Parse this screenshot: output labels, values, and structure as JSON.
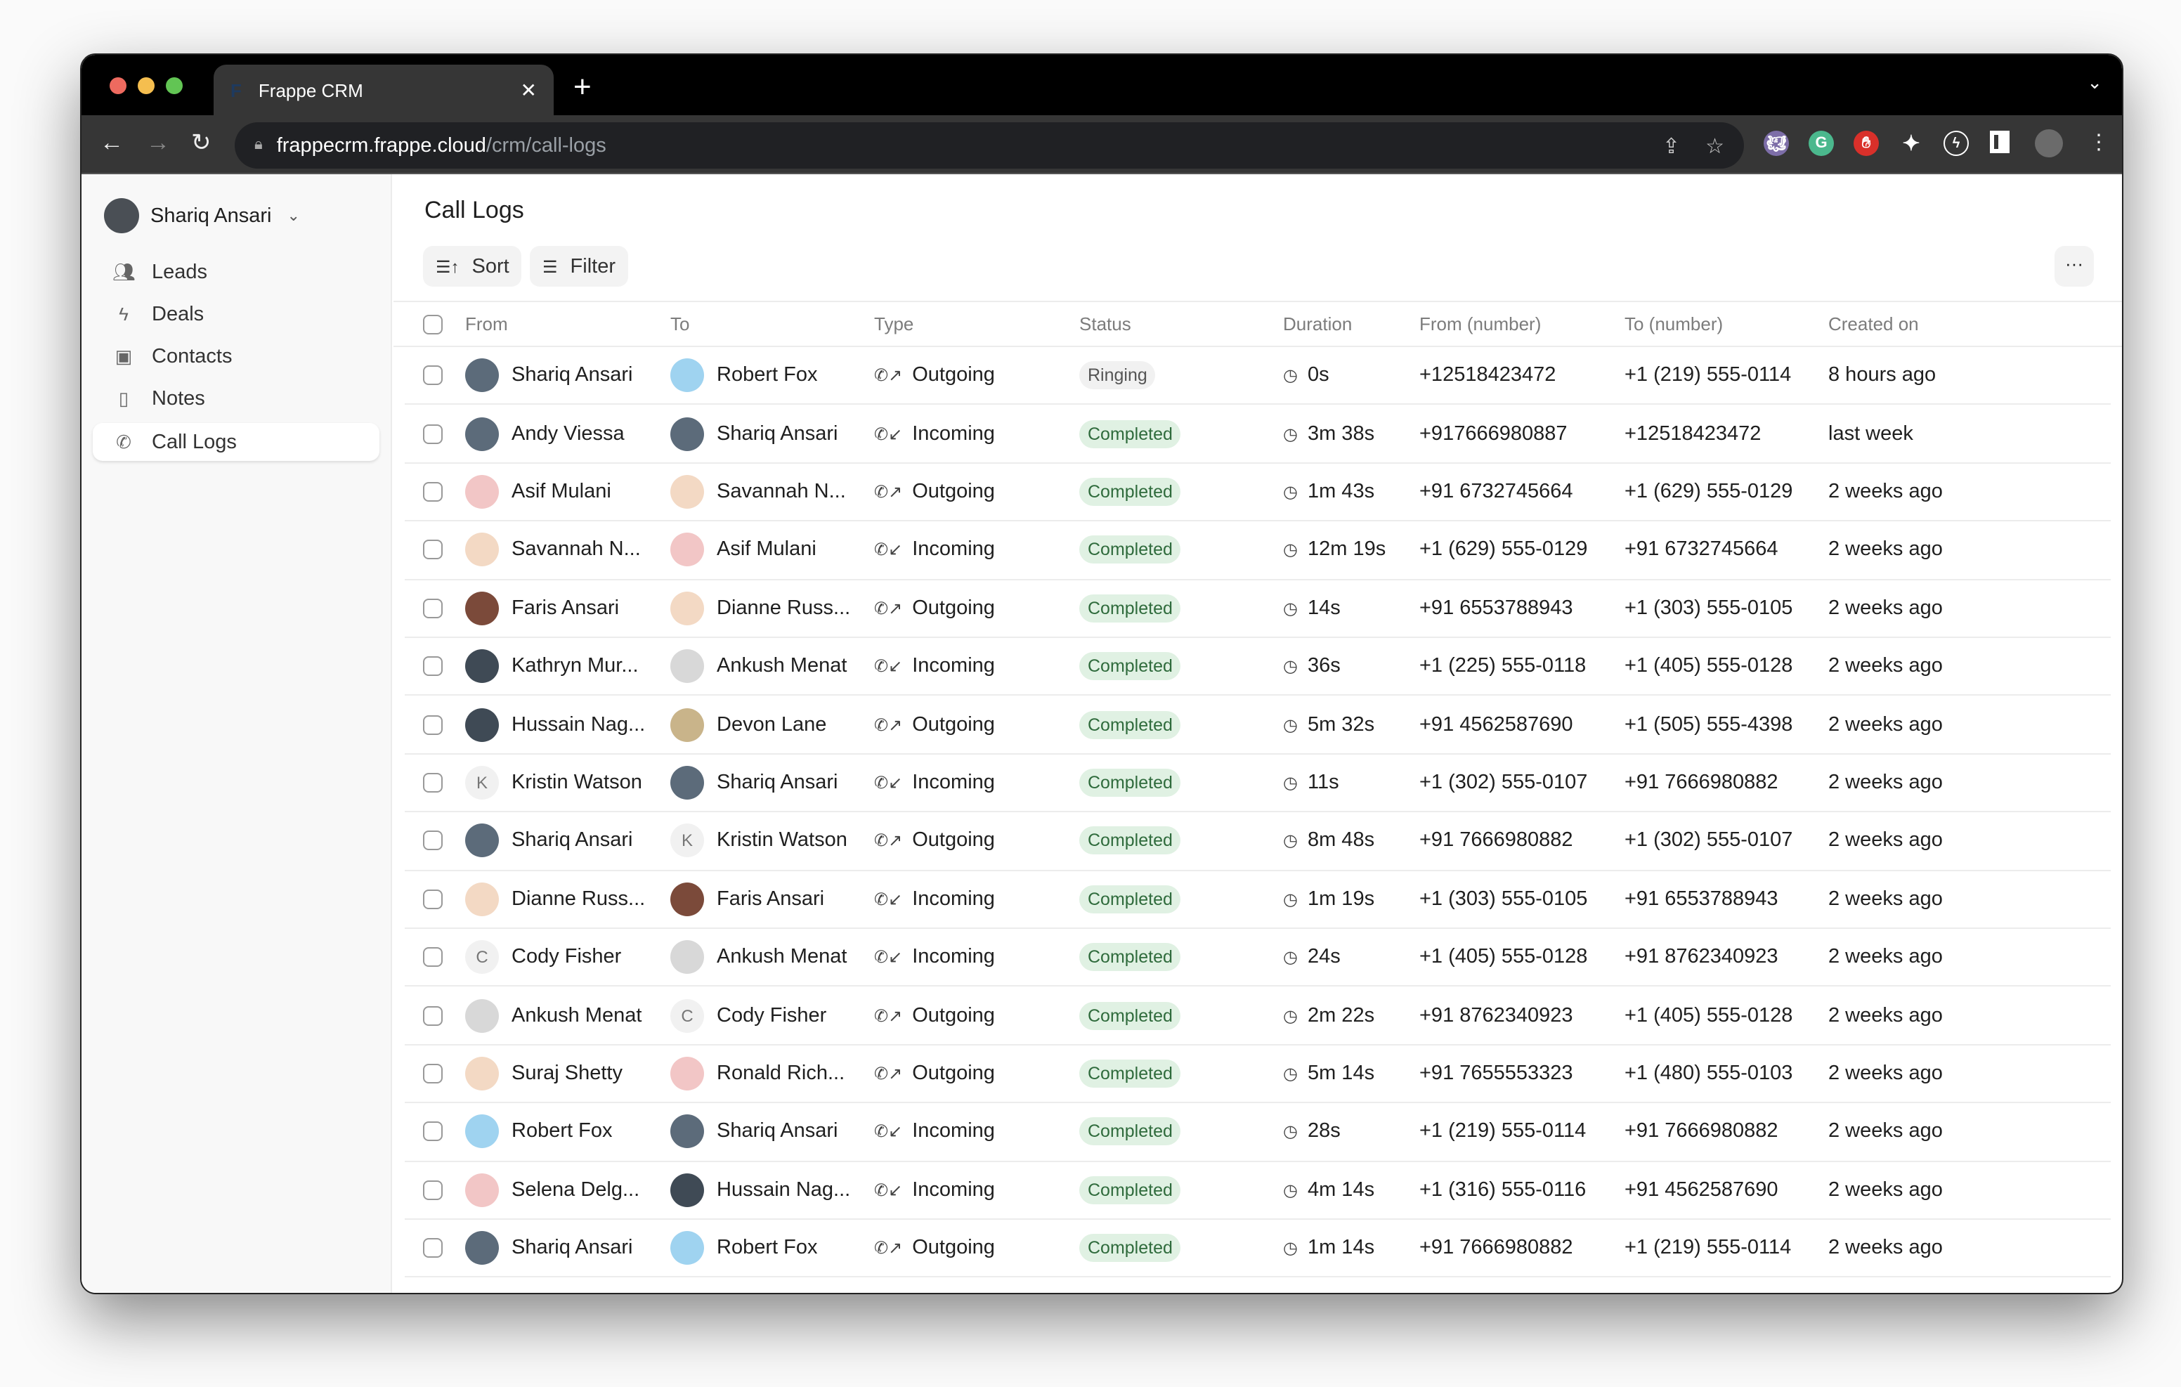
{
  "browser": {
    "tab_title": "Frappe CRM",
    "tab_favicon": "F",
    "url_host": "frappecrm.frappe.cloud",
    "url_path": "/crm/call-logs",
    "colors": {
      "close": "#ee6a5f",
      "minimize": "#f5be4f",
      "maximize": "#62c554"
    }
  },
  "sidebar": {
    "user": "Shariq Ansari",
    "items": [
      {
        "label": "Leads",
        "icon": "users-icon"
      },
      {
        "label": "Deals",
        "icon": "lightning-icon"
      },
      {
        "label": "Contacts",
        "icon": "contact-card-icon"
      },
      {
        "label": "Notes",
        "icon": "note-icon"
      },
      {
        "label": "Call Logs",
        "icon": "phone-icon",
        "active": true
      }
    ]
  },
  "main": {
    "title": "Call Logs",
    "sort_label": "Sort",
    "filter_label": "Filter",
    "more_label": "···",
    "columns": [
      "From",
      "To",
      "Type",
      "Status",
      "Duration",
      "From (number)",
      "To (number)",
      "Created on"
    ],
    "rows": [
      {
        "from": "Shariq Ansari",
        "to": "Robert Fox",
        "type": "Outgoing",
        "status": "Ringing",
        "duration": "0s",
        "from_number": "+12518423472",
        "to_number": "+1 (219) 555-0114",
        "created": "8 hours ago"
      },
      {
        "from": "Andy Viessa",
        "to": "Shariq Ansari",
        "type": "Incoming",
        "status": "Completed",
        "duration": "3m 38s",
        "from_number": "+917666980887",
        "to_number": "+12518423472",
        "created": "last week"
      },
      {
        "from": "Asif Mulani",
        "to": "Savannah N...",
        "type": "Outgoing",
        "status": "Completed",
        "duration": "1m 43s",
        "from_number": "+91 6732745664",
        "to_number": "+1 (629) 555-0129",
        "created": "2 weeks ago"
      },
      {
        "from": "Savannah N...",
        "to": "Asif Mulani",
        "type": "Incoming",
        "status": "Completed",
        "duration": "12m 19s",
        "from_number": "+1 (629) 555-0129",
        "to_number": "+91 6732745664",
        "created": "2 weeks ago"
      },
      {
        "from": "Faris Ansari",
        "to": "Dianne Russ...",
        "type": "Outgoing",
        "status": "Completed",
        "duration": "14s",
        "from_number": "+91 6553788943",
        "to_number": "+1 (303) 555-0105",
        "created": "2 weeks ago"
      },
      {
        "from": "Kathryn Mur...",
        "to": "Ankush Menat",
        "type": "Incoming",
        "status": "Completed",
        "duration": "36s",
        "from_number": "+1 (225) 555-0118",
        "to_number": "+1 (405) 555-0128",
        "created": "2 weeks ago"
      },
      {
        "from": "Hussain Nag...",
        "to": "Devon Lane",
        "type": "Outgoing",
        "status": "Completed",
        "duration": "5m 32s",
        "from_number": "+91 4562587690",
        "to_number": "+1 (505) 555-4398",
        "created": "2 weeks ago"
      },
      {
        "from": "Kristin Watson",
        "from_letter": "K",
        "to": "Shariq Ansari",
        "type": "Incoming",
        "status": "Completed",
        "duration": "11s",
        "from_number": "+1 (302) 555-0107",
        "to_number": "+91 7666980882",
        "created": "2 weeks ago"
      },
      {
        "from": "Shariq Ansari",
        "to": "Kristin Watson",
        "to_letter": "K",
        "type": "Outgoing",
        "status": "Completed",
        "duration": "8m 48s",
        "from_number": "+91 7666980882",
        "to_number": "+1 (302) 555-0107",
        "created": "2 weeks ago"
      },
      {
        "from": "Dianne Russ...",
        "to": "Faris Ansari",
        "type": "Incoming",
        "status": "Completed",
        "duration": "1m 19s",
        "from_number": "+1 (303) 555-0105",
        "to_number": "+91 6553788943",
        "created": "2 weeks ago"
      },
      {
        "from": "Cody Fisher",
        "from_letter": "C",
        "to": "Ankush Menat",
        "type": "Incoming",
        "status": "Completed",
        "duration": "24s",
        "from_number": "+1 (405) 555-0128",
        "to_number": "+91 8762340923",
        "created": "2 weeks ago"
      },
      {
        "from": "Ankush Menat",
        "to": "Cody Fisher",
        "to_letter": "C",
        "type": "Outgoing",
        "status": "Completed",
        "duration": "2m 22s",
        "from_number": "+91 8762340923",
        "to_number": "+1 (405) 555-0128",
        "created": "2 weeks ago"
      },
      {
        "from": "Suraj Shetty",
        "to": "Ronald Rich...",
        "type": "Outgoing",
        "status": "Completed",
        "duration": "5m 14s",
        "from_number": "+91 7655553323",
        "to_number": "+1 (480) 555-0103",
        "created": "2 weeks ago"
      },
      {
        "from": "Robert Fox",
        "to": "Shariq Ansari",
        "type": "Incoming",
        "status": "Completed",
        "duration": "28s",
        "from_number": "+1 (219) 555-0114",
        "to_number": "+91 7666980882",
        "created": "2 weeks ago"
      },
      {
        "from": "Selena Delg...",
        "to": "Hussain Nag...",
        "type": "Incoming",
        "status": "Completed",
        "duration": "4m 14s",
        "from_number": "+1 (316) 555-0116",
        "to_number": "+91 4562587690",
        "created": "2 weeks ago"
      },
      {
        "from": "Shariq Ansari",
        "to": "Robert Fox",
        "type": "Outgoing",
        "status": "Completed",
        "duration": "1m 14s",
        "from_number": "+91 7666980882",
        "to_number": "+1 (219) 555-0114",
        "created": "2 weeks ago"
      }
    ]
  }
}
